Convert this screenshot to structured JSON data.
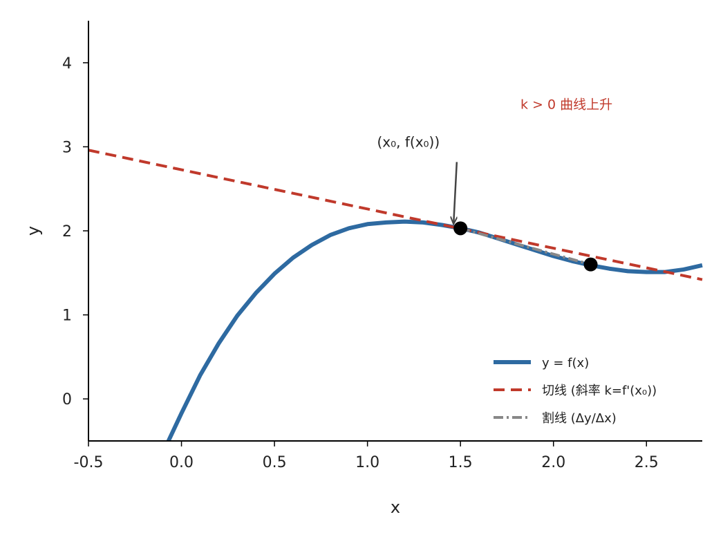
{
  "chart_data": {
    "type": "line",
    "xlabel": "x",
    "ylabel": "y",
    "xlim": [
      -0.5,
      2.8
    ],
    "ylim": [
      -0.5,
      4.5
    ],
    "xticks": [
      -0.5,
      0.0,
      0.5,
      1.0,
      1.5,
      2.0,
      2.5
    ],
    "xtick_labels": [
      "-0.5",
      "0.0",
      "0.5",
      "1.0",
      "1.5",
      "2.0",
      "2.5"
    ],
    "yticks": [
      0,
      1,
      2,
      3,
      4
    ],
    "ytick_labels": [
      "0",
      "1",
      "2",
      "3",
      "4"
    ],
    "grid": false,
    "legend_position": "lower-right",
    "series": [
      {
        "name": "y = f(x)",
        "style": "solid",
        "color": "#2e6aa1",
        "x": [
          -0.07,
          0.0,
          0.1,
          0.2,
          0.3,
          0.4,
          0.5,
          0.6,
          0.7,
          0.8,
          0.9,
          1.0,
          1.1,
          1.2,
          1.3,
          1.4,
          1.5,
          1.6,
          1.7,
          1.8,
          1.9,
          2.0,
          2.1,
          2.2,
          2.3,
          2.4,
          2.5,
          2.6,
          2.7,
          2.8
        ],
        "y": [
          -0.5,
          -0.17,
          0.28,
          0.66,
          0.99,
          1.26,
          1.49,
          1.68,
          1.83,
          1.95,
          2.03,
          2.08,
          2.1,
          2.11,
          2.1,
          2.07,
          2.03,
          1.98,
          1.91,
          1.84,
          1.77,
          1.7,
          1.64,
          1.59,
          1.55,
          1.52,
          1.51,
          1.51,
          1.54,
          1.59
        ]
      },
      {
        "name": "切线 (斜率 k=f'(x₀))",
        "style": "dashed",
        "color": "#c0392b",
        "x": [
          -0.5,
          2.8
        ],
        "y": [
          2.96,
          1.42
        ]
      },
      {
        "name": "割线 (Δy/Δx)",
        "style": "dashdot",
        "color": "#888888",
        "x": [
          1.5,
          2.2
        ],
        "y": [
          2.03,
          1.6
        ]
      }
    ],
    "points": [
      {
        "x": 1.5,
        "y": 2.03
      },
      {
        "x": 2.2,
        "y": 1.6
      }
    ],
    "annotations": [
      {
        "text": "(x₀, f(x₀))",
        "point": [
          1.5,
          2.03
        ],
        "text_pos": [
          1.22,
          3.0
        ]
      },
      {
        "text": "k > 0 曲线上升",
        "color": "#c0392b",
        "pos": [
          2.07,
          3.45
        ]
      }
    ]
  }
}
